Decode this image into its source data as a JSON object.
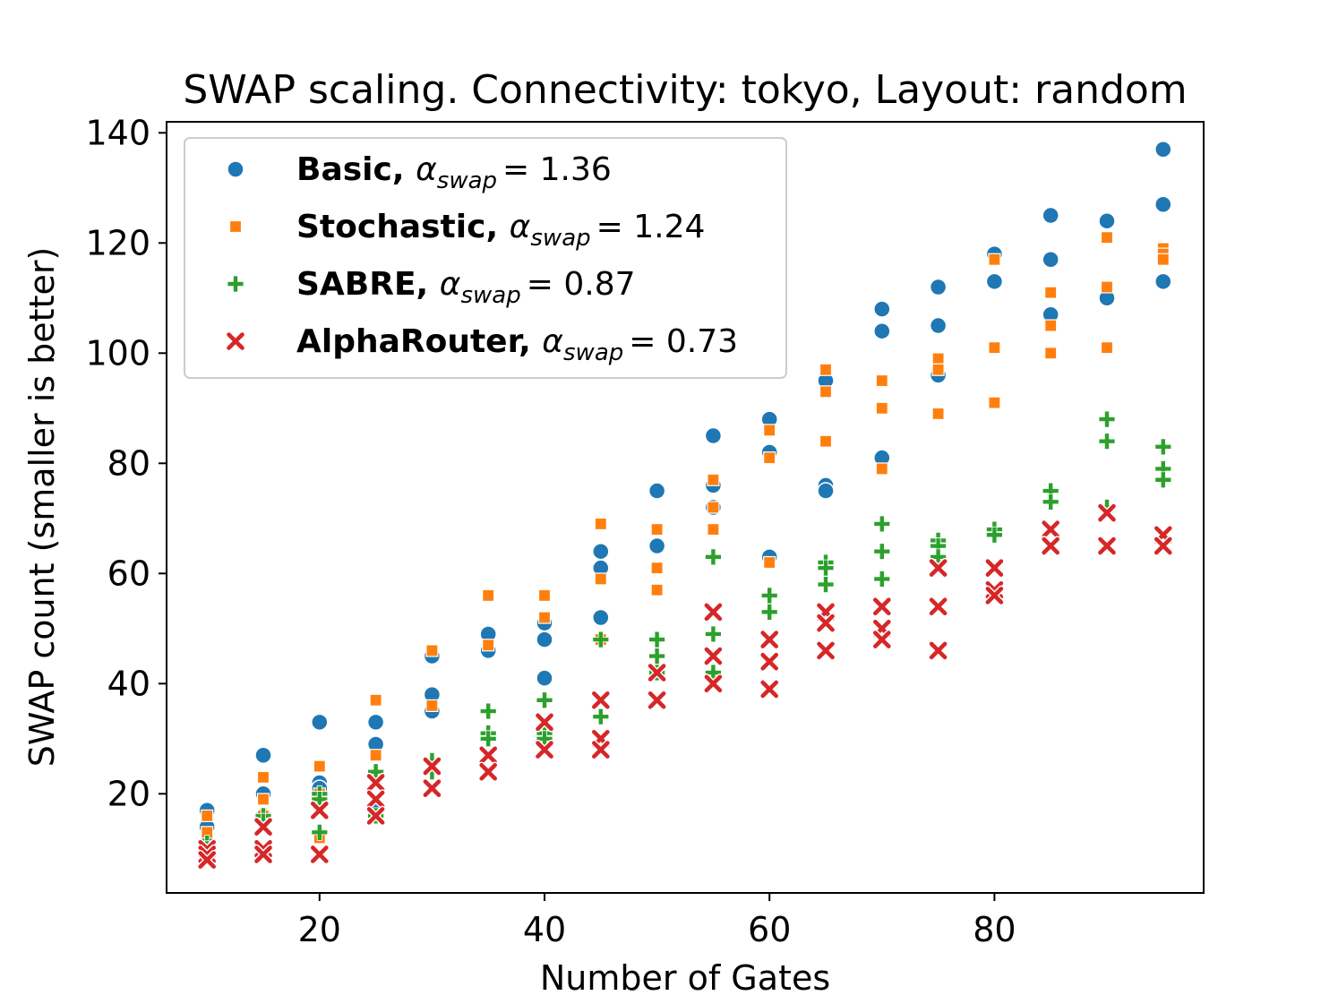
{
  "chart_data": {
    "type": "scatter",
    "title": "SWAP scaling. Connectivity: tokyo, Layout: random",
    "xlabel": "Number of Gates",
    "ylabel": "SWAP count (smaller is better)",
    "xlim": [
      6.4,
      98.6
    ],
    "ylim": [
      2,
      142
    ],
    "xticks": [
      20,
      40,
      60,
      80
    ],
    "yticks": [
      20,
      40,
      60,
      80,
      100,
      120,
      140
    ],
    "legend_position": "top-left",
    "series": [
      {
        "name": "Basic",
        "alpha_label": "α",
        "alpha_sub": "swap",
        "alpha_value": "= 1.36",
        "marker": "circle",
        "color": "#1f77b4",
        "points": [
          [
            10,
            17
          ],
          [
            10,
            14
          ],
          [
            10,
            11
          ],
          [
            10,
            10
          ],
          [
            15,
            27
          ],
          [
            15,
            20
          ],
          [
            15,
            16
          ],
          [
            20,
            33
          ],
          [
            20,
            22
          ],
          [
            20,
            21
          ],
          [
            25,
            33
          ],
          [
            25,
            29
          ],
          [
            25,
            17
          ],
          [
            30,
            45
          ],
          [
            30,
            38
          ],
          [
            30,
            35
          ],
          [
            35,
            49
          ],
          [
            35,
            46
          ],
          [
            40,
            51
          ],
          [
            40,
            48
          ],
          [
            40,
            41
          ],
          [
            45,
            64
          ],
          [
            45,
            61
          ],
          [
            45,
            52
          ],
          [
            50,
            75
          ],
          [
            50,
            65
          ],
          [
            50,
            42
          ],
          [
            55,
            85
          ],
          [
            55,
            76
          ],
          [
            55,
            72
          ],
          [
            60,
            88
          ],
          [
            60,
            82
          ],
          [
            60,
            63
          ],
          [
            65,
            95
          ],
          [
            65,
            76
          ],
          [
            65,
            75
          ],
          [
            70,
            108
          ],
          [
            70,
            104
          ],
          [
            70,
            81
          ],
          [
            75,
            112
          ],
          [
            75,
            105
          ],
          [
            75,
            96
          ],
          [
            80,
            118
          ],
          [
            80,
            113
          ],
          [
            85,
            125
          ],
          [
            85,
            117
          ],
          [
            85,
            107
          ],
          [
            90,
            124
          ],
          [
            90,
            110
          ],
          [
            95,
            137
          ],
          [
            95,
            127
          ],
          [
            95,
            113
          ]
        ]
      },
      {
        "name": "Stochastic",
        "alpha_label": "α",
        "alpha_sub": "swap",
        "alpha_value": "= 1.24",
        "marker": "square",
        "color": "#ff7f0e",
        "points": [
          [
            10,
            16
          ],
          [
            10,
            13
          ],
          [
            10,
            9
          ],
          [
            15,
            23
          ],
          [
            15,
            19
          ],
          [
            15,
            16
          ],
          [
            20,
            25
          ],
          [
            20,
            20
          ],
          [
            20,
            12
          ],
          [
            25,
            37
          ],
          [
            25,
            27
          ],
          [
            25,
            16
          ],
          [
            30,
            46
          ],
          [
            30,
            36
          ],
          [
            35,
            56
          ],
          [
            35,
            47
          ],
          [
            40,
            56
          ],
          [
            40,
            52
          ],
          [
            45,
            69
          ],
          [
            45,
            59
          ],
          [
            45,
            48
          ],
          [
            50,
            68
          ],
          [
            50,
            61
          ],
          [
            50,
            57
          ],
          [
            55,
            77
          ],
          [
            55,
            72
          ],
          [
            55,
            68
          ],
          [
            60,
            86
          ],
          [
            60,
            81
          ],
          [
            60,
            62
          ],
          [
            65,
            97
          ],
          [
            65,
            93
          ],
          [
            65,
            84
          ],
          [
            70,
            95
          ],
          [
            70,
            90
          ],
          [
            70,
            79
          ],
          [
            75,
            99
          ],
          [
            75,
            97
          ],
          [
            75,
            89
          ],
          [
            80,
            117
          ],
          [
            80,
            101
          ],
          [
            80,
            91
          ],
          [
            85,
            111
          ],
          [
            85,
            105
          ],
          [
            85,
            100
          ],
          [
            90,
            121
          ],
          [
            90,
            112
          ],
          [
            90,
            101
          ],
          [
            95,
            119
          ],
          [
            95,
            118
          ],
          [
            95,
            117
          ]
        ]
      },
      {
        "name": "SABRE",
        "alpha_label": "α",
        "alpha_sub": "swap",
        "alpha_value": "= 0.87",
        "marker": "plus",
        "color": "#2ca02c",
        "points": [
          [
            10,
            11
          ],
          [
            10,
            10
          ],
          [
            15,
            16
          ],
          [
            15,
            15
          ],
          [
            20,
            20
          ],
          [
            20,
            19
          ],
          [
            20,
            13
          ],
          [
            25,
            24
          ],
          [
            25,
            16
          ],
          [
            30,
            26
          ],
          [
            30,
            24
          ],
          [
            35,
            35
          ],
          [
            35,
            31
          ],
          [
            35,
            30
          ],
          [
            40,
            37
          ],
          [
            40,
            31
          ],
          [
            40,
            30
          ],
          [
            45,
            48
          ],
          [
            45,
            34
          ],
          [
            50,
            48
          ],
          [
            50,
            45
          ],
          [
            50,
            42
          ],
          [
            55,
            63
          ],
          [
            55,
            49
          ],
          [
            55,
            42
          ],
          [
            60,
            56
          ],
          [
            60,
            53
          ],
          [
            65,
            62
          ],
          [
            65,
            61
          ],
          [
            65,
            58
          ],
          [
            70,
            69
          ],
          [
            70,
            64
          ],
          [
            70,
            59
          ],
          [
            75,
            66
          ],
          [
            75,
            65
          ],
          [
            75,
            63
          ],
          [
            80,
            68
          ],
          [
            80,
            67
          ],
          [
            85,
            75
          ],
          [
            85,
            73
          ],
          [
            90,
            88
          ],
          [
            90,
            84
          ],
          [
            90,
            72
          ],
          [
            95,
            83
          ],
          [
            95,
            79
          ],
          [
            95,
            77
          ]
        ]
      },
      {
        "name": "AlphaRouter",
        "alpha_label": "α",
        "alpha_sub": "swap",
        "alpha_value": "= 0.73",
        "marker": "x",
        "color": "#d62728",
        "points": [
          [
            10,
            10
          ],
          [
            10,
            9
          ],
          [
            10,
            8
          ],
          [
            15,
            14
          ],
          [
            15,
            10
          ],
          [
            15,
            9
          ],
          [
            20,
            17
          ],
          [
            20,
            9
          ],
          [
            25,
            22
          ],
          [
            25,
            19
          ],
          [
            25,
            16
          ],
          [
            30,
            25
          ],
          [
            30,
            21
          ],
          [
            35,
            27
          ],
          [
            35,
            24
          ],
          [
            40,
            33
          ],
          [
            40,
            28
          ],
          [
            45,
            37
          ],
          [
            45,
            30
          ],
          [
            45,
            28
          ],
          [
            50,
            42
          ],
          [
            50,
            37
          ],
          [
            55,
            53
          ],
          [
            55,
            45
          ],
          [
            55,
            40
          ],
          [
            60,
            48
          ],
          [
            60,
            44
          ],
          [
            60,
            39
          ],
          [
            65,
            53
          ],
          [
            65,
            51
          ],
          [
            65,
            46
          ],
          [
            70,
            54
          ],
          [
            70,
            50
          ],
          [
            70,
            48
          ],
          [
            75,
            61
          ],
          [
            75,
            54
          ],
          [
            75,
            46
          ],
          [
            80,
            61
          ],
          [
            80,
            57
          ],
          [
            80,
            56
          ],
          [
            85,
            68
          ],
          [
            85,
            65
          ],
          [
            90,
            71
          ],
          [
            90,
            65
          ],
          [
            95,
            67
          ],
          [
            95,
            65
          ]
        ]
      }
    ]
  }
}
